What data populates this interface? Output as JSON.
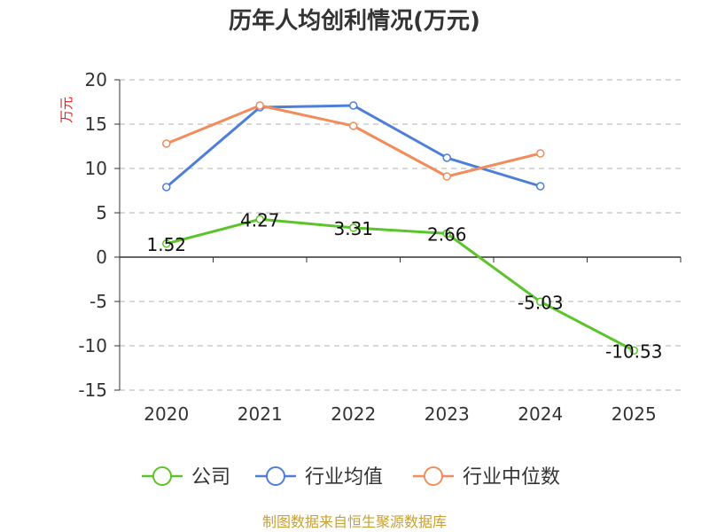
{
  "chart_data": {
    "type": "line",
    "title": "历年人均创利情况(万元)",
    "ylabel": "万元",
    "categories": [
      "2020",
      "2021",
      "2022",
      "2023",
      "2024",
      "2025"
    ],
    "yticks": [
      20,
      15,
      10,
      5,
      0,
      -5,
      -10,
      -15
    ],
    "ylim": [
      -15,
      20
    ],
    "grid": true,
    "legend_position": "bottom",
    "series": [
      {
        "name": "公司",
        "color": "#5bc429",
        "values": [
          1.52,
          4.27,
          3.31,
          2.66,
          -5.03,
          -10.53
        ],
        "labels": [
          "1.52",
          "4.27",
          "3.31",
          "2.66",
          "-5.03",
          "-10.53"
        ]
      },
      {
        "name": "行业均值",
        "color": "#4e7fd8",
        "values": [
          7.9,
          16.9,
          17.1,
          11.2,
          8.0,
          null
        ]
      },
      {
        "name": "行业中位数",
        "color": "#f28c5a",
        "values": [
          12.8,
          17.1,
          14.8,
          9.1,
          11.7,
          null
        ]
      }
    ]
  },
  "source": "制图数据来自恒生聚源数据库"
}
